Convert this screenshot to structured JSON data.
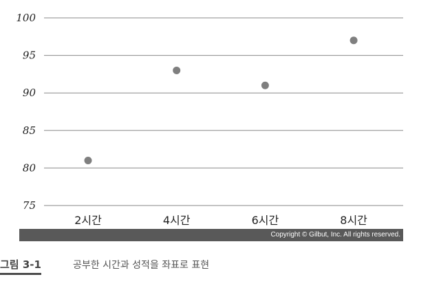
{
  "chart_data": {
    "type": "scatter",
    "categories": [
      "2시간",
      "4시간",
      "6시간",
      "8시간"
    ],
    "values": [
      81,
      93,
      91,
      97
    ],
    "ylim": [
      75,
      100
    ],
    "yticks": [
      75,
      80,
      85,
      90,
      95,
      100
    ],
    "ytick_labels": [
      "75",
      "80",
      "85",
      "90",
      "95",
      "100"
    ],
    "grid": "horizontal",
    "colors": {
      "marker": "#7f7f7f",
      "gridline": "#8a8a8a"
    }
  },
  "copyright": "Copyright © Gilbut, Inc. All rights reserved.",
  "caption": {
    "label": "그림 3-1",
    "text": "공부한 시간과 성적을 좌표로 표현"
  }
}
